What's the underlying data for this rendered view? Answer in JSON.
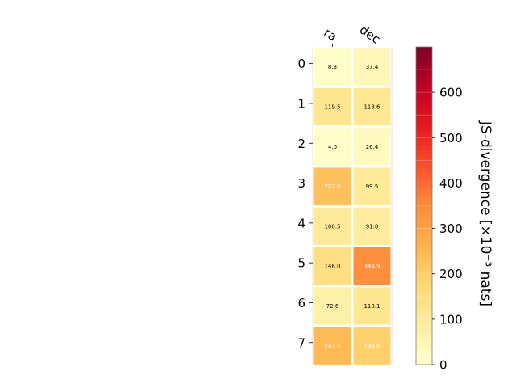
{
  "chart_data": {
    "type": "heatmap",
    "title": "",
    "columns": [
      "ra",
      "dec"
    ],
    "rows": [
      "0",
      "1",
      "2",
      "3",
      "4",
      "5",
      "6",
      "7"
    ],
    "values": [
      [
        8.3,
        37.4
      ],
      [
        119.5,
        113.6
      ],
      [
        4.0,
        26.4
      ],
      [
        227.8,
        99.5
      ],
      [
        100.5,
        91.8
      ],
      [
        148.0,
        344.9
      ],
      [
        72.6,
        118.1
      ],
      [
        243.6,
        193.8
      ]
    ],
    "value_labels": [
      [
        "8.3",
        "37.4"
      ],
      [
        "119.5",
        "113.6"
      ],
      [
        "4.0",
        "26.4"
      ],
      [
        "227.8",
        "99.5"
      ],
      [
        "100.5",
        "91.8"
      ],
      [
        "148.0",
        "344.9"
      ],
      [
        "72.6",
        "118.1"
      ],
      [
        "243.6",
        "193.8"
      ]
    ],
    "colorbar": {
      "label": "JS-divergence [×10⁻³ nats]",
      "colormap": "YlOrRd",
      "range": [
        0,
        700
      ],
      "ticks": [
        0,
        100,
        200,
        300,
        400,
        500,
        600
      ],
      "tick_labels": [
        "0",
        "100",
        "200",
        "300",
        "400",
        "500",
        "600"
      ]
    },
    "colors": {
      "light_text": "#ffffff",
      "dark_text": "#000000",
      "cell_border": "#ffffff"
    }
  }
}
